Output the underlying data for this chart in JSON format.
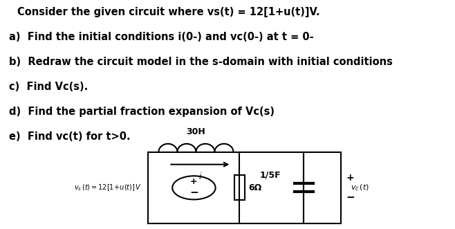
{
  "title_line": "Consider the given circuit where vs(t) = 12[1+u(t)]V.",
  "items": [
    "a)  Find the initial conditions i(0-) and vc(0-) at t = 0-",
    "b)  Redraw the circuit model in the s-domain with initial conditions",
    "c)  Find Vc(s).",
    "d)  Find the partial fraction expansion of Vc(s)",
    "e)  Find vc(t) for t>0."
  ],
  "bg_color": "#ffffff",
  "text_color": "#000000",
  "circuit": {
    "inductor_label": "30H",
    "resistor_label": "6Ω",
    "capacitor_label": "1/5F",
    "current_label": "i"
  }
}
